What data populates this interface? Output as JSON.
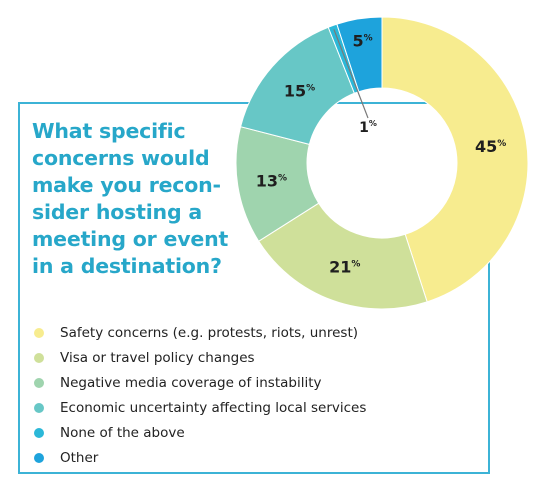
{
  "question": {
    "lines": [
      "What specific",
      "concerns would",
      "make you recon-",
      "sider hosting a",
      "meeting or event",
      "in a destination?"
    ]
  },
  "chart_data": {
    "type": "pie",
    "variant": "donut",
    "categories": [
      "Safety concerns (e.g. protests, riots, unrest)",
      "Visa or travel policy changes",
      "Negative media coverage of instability",
      "Economic uncertainty affecting local services",
      "None of the above",
      "Other"
    ],
    "values": [
      45,
      21,
      13,
      15,
      1,
      5
    ],
    "value_labels": [
      "45",
      "21",
      "13",
      "15",
      "1",
      "5"
    ],
    "unit": "%",
    "colors": [
      "#f7ec8f",
      "#cfe09a",
      "#9fd4ae",
      "#67c7c6",
      "#2bb8d8",
      "#1ea3dc"
    ],
    "legend_position": "bottom-left"
  }
}
